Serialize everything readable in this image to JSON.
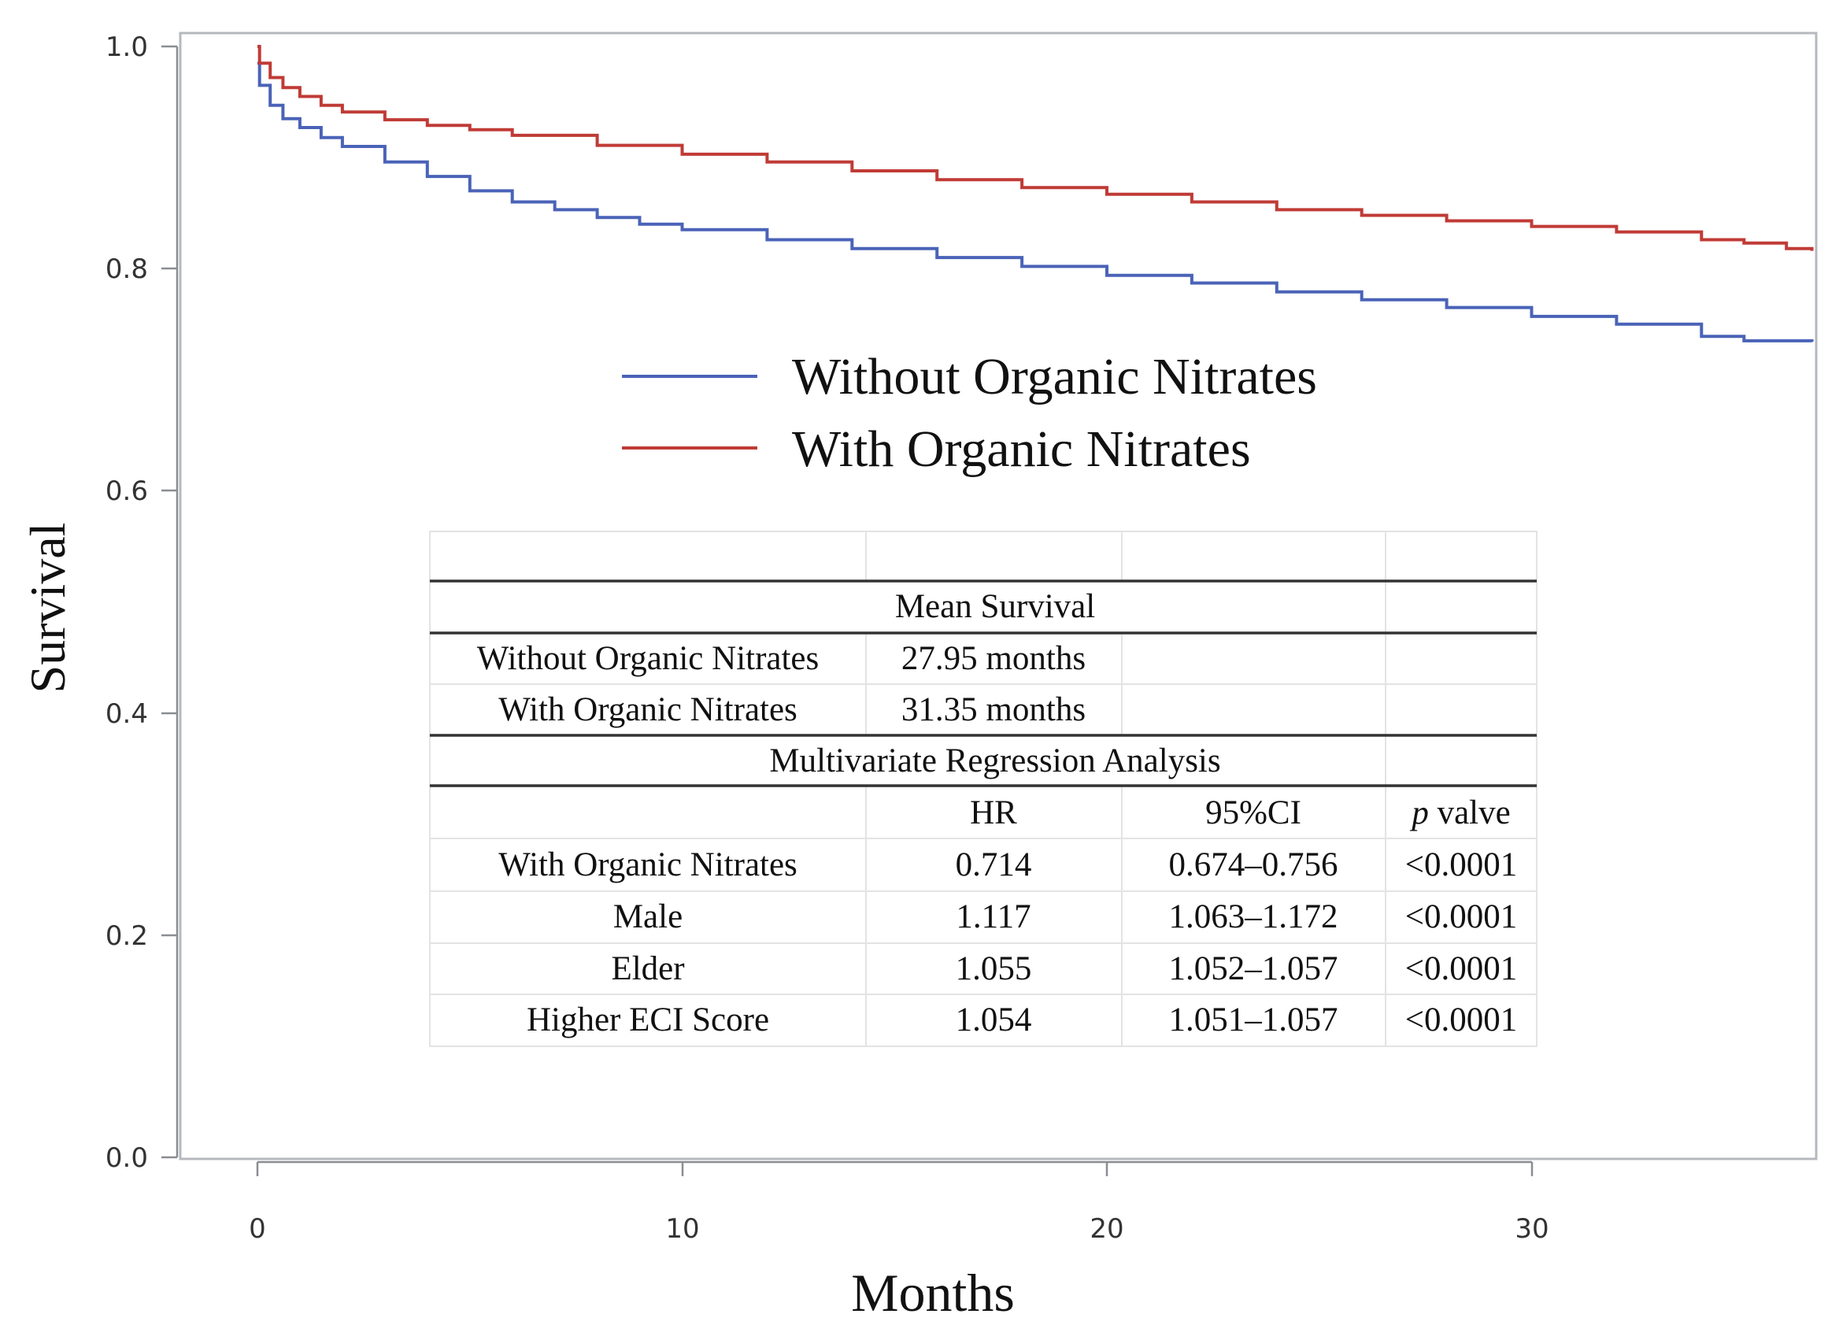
{
  "chart_data": {
    "type": "line",
    "xlabel": "Months",
    "ylabel": "Survival",
    "xlim": [
      -1.8,
      37.3
    ],
    "ylim": [
      0.0,
      1.0
    ],
    "x_ticks": [
      0,
      10,
      20,
      30
    ],
    "y_ticks": [
      0.0,
      0.2,
      0.4,
      0.6,
      0.8,
      1.0
    ],
    "x_tick_labels": [
      "0",
      "10",
      "20",
      "30"
    ],
    "y_tick_labels": [
      "0.0",
      "0.2",
      "0.4",
      "0.6",
      "0.8",
      "1.0"
    ],
    "legend": {
      "placement": "upper-center",
      "entries": [
        {
          "label": "Without Organic Nitrates",
          "color": "#4a63b8"
        },
        {
          "label": "With Organic Nitrates",
          "color": "#c03b36"
        }
      ]
    },
    "series": [
      {
        "name": "Without Organic Nitrates",
        "color": "#4a63b8",
        "x": [
          0,
          0.05,
          0.3,
          0.6,
          1,
          1.5,
          2,
          3,
          4,
          5,
          6,
          7,
          8,
          9,
          10,
          12,
          14,
          16,
          18,
          20,
          22,
          24,
          26,
          28,
          30,
          32,
          34,
          35,
          36,
          36.6
        ],
        "y": [
          0.985,
          0.965,
          0.947,
          0.935,
          0.927,
          0.918,
          0.91,
          0.896,
          0.883,
          0.87,
          0.86,
          0.853,
          0.846,
          0.84,
          0.835,
          0.826,
          0.818,
          0.81,
          0.802,
          0.794,
          0.787,
          0.779,
          0.772,
          0.765,
          0.757,
          0.75,
          0.739,
          0.735,
          0.735,
          0.734
        ]
      },
      {
        "name": "With Organic Nitrates",
        "color": "#c03b36",
        "x": [
          0,
          0.05,
          0.3,
          0.6,
          1,
          1.5,
          2,
          3,
          4,
          5,
          6,
          8,
          10,
          12,
          14,
          16,
          18,
          20,
          22,
          24,
          26,
          28,
          30,
          32,
          34,
          35,
          36,
          36.6
        ],
        "y": [
          1.0,
          0.985,
          0.972,
          0.963,
          0.955,
          0.947,
          0.941,
          0.934,
          0.929,
          0.925,
          0.92,
          0.911,
          0.903,
          0.896,
          0.888,
          0.88,
          0.873,
          0.867,
          0.86,
          0.853,
          0.848,
          0.843,
          0.838,
          0.833,
          0.826,
          0.823,
          0.818,
          0.816
        ]
      }
    ]
  },
  "table": {
    "mean_survival_header": "Mean Survival",
    "mean_rows": [
      {
        "label": "Without Organic Nitrates",
        "value": "27.95 months"
      },
      {
        "label": "With Organic Nitrates",
        "value": "31.35 months"
      }
    ],
    "regression_header": "Multivariate Regression Analysis",
    "columns": {
      "hr": "HR",
      "ci": "95%CI",
      "p_prefix": "p",
      "p_rest": "valve"
    },
    "rows": [
      {
        "label": "With Organic Nitrates",
        "hr": "0.714",
        "ci": "0.674–0.756",
        "p": "<0.0001"
      },
      {
        "label": "Male",
        "hr": "1.117",
        "ci": "1.063–1.172",
        "p": "<0.0001"
      },
      {
        "label": "Elder",
        "hr": "1.055",
        "ci": "1.052–1.057",
        "p": "<0.0001"
      },
      {
        "label": "Higher ECI Score",
        "hr": "1.054",
        "ci": "1.051–1.057",
        "p": "<0.0001"
      }
    ]
  }
}
